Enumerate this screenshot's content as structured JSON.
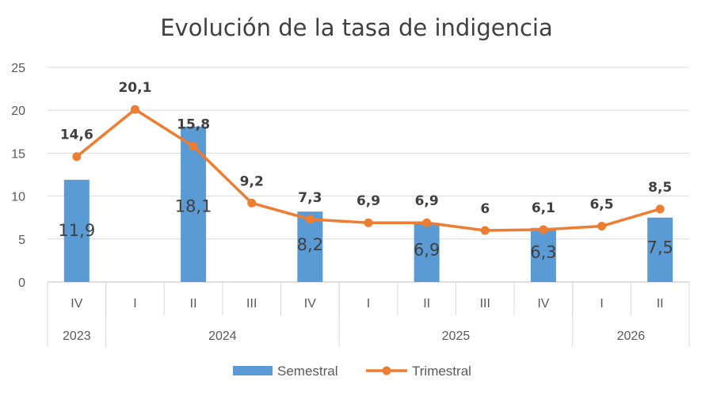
{
  "chart_data": {
    "type": "bar",
    "title": "Evolución de la tasa de indigencia",
    "ylim": [
      0,
      25
    ],
    "yticks": [
      "0",
      "5",
      "10",
      "15",
      "20",
      "25"
    ],
    "grid": true,
    "legend_position": "bottom",
    "categories": [
      "IV",
      "I",
      "II",
      "III",
      "IV",
      "I",
      "II",
      "III",
      "IV",
      "I",
      "II"
    ],
    "groups": [
      {
        "label": "2023",
        "span": 1
      },
      {
        "label": "2024",
        "span": 4
      },
      {
        "label": "2025",
        "span": 4
      },
      {
        "label": "2026",
        "span": 2
      }
    ],
    "series": [
      {
        "name": "Semestral",
        "kind": "bar",
        "color": "#5B9BD5",
        "values": [
          11.9,
          null,
          18.1,
          null,
          8.2,
          null,
          6.9,
          null,
          6.3,
          null,
          7.5
        ],
        "labels": [
          "11,9",
          "",
          "18,1",
          "",
          "8,2",
          "",
          "6,9",
          "",
          "6,3",
          "",
          "7,5"
        ]
      },
      {
        "name": "Trimestral",
        "kind": "line",
        "color": "#ED7D31",
        "values": [
          14.6,
          20.1,
          15.8,
          9.2,
          7.3,
          6.9,
          6.9,
          6.0,
          6.1,
          6.5,
          8.5
        ],
        "labels": [
          "14,6",
          "20,1",
          "15,8",
          "9,2",
          "7,3",
          "6,9",
          "6,9",
          "6",
          "6,1",
          "6,5",
          "8,5"
        ]
      }
    ]
  }
}
